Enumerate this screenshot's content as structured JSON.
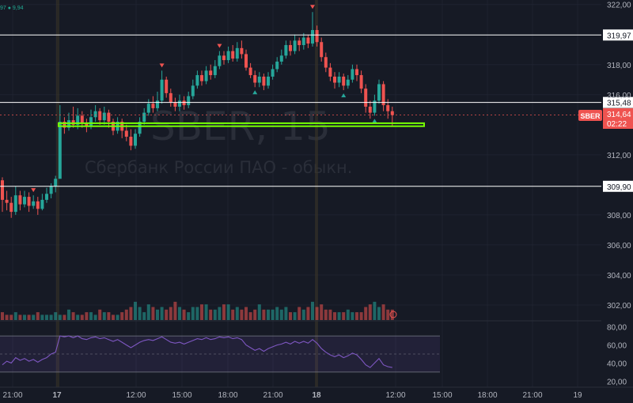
{
  "watermark": {
    "ticker": "SBER, 15",
    "name": "Сбербанк России ПАО - обыкн."
  },
  "legend": {
    "values": "97 ● 9,94"
  },
  "price_tag": {
    "symbol": "SBER",
    "price": "314,64",
    "countdown": "02:22"
  },
  "colors": {
    "up": "#26a69a",
    "down": "#ef5350",
    "level": "#ffffff",
    "highlight": "#76ff03",
    "rsi_line": "#7e57c2"
  },
  "chart_data": [
    {
      "type": "candlestick",
      "y_axis_ticks": [
        "322,00",
        "318,00",
        "316,00",
        "312,00",
        "308,00",
        "306,00",
        "304,00",
        "302,00"
      ],
      "ylim": [
        301,
        322.3
      ],
      "x_axis_ticks": [
        "21:00",
        "17",
        "12:00",
        "15:00",
        "18:00",
        "21:00",
        "18",
        "12:00",
        "15:00",
        "18:00",
        "21:00",
        "19"
      ],
      "horizontal_levels": [
        {
          "value": 319.97,
          "label": "319,97"
        },
        {
          "value": 315.48,
          "label": "315,48"
        },
        {
          "value": 309.9,
          "label": "309,90"
        }
      ],
      "support_zone": [
        313.9,
        314.1
      ],
      "session_separators": [
        "17",
        "18"
      ],
      "candles": [
        [
          310.3,
          309.0,
          310.5,
          308.2
        ],
        [
          309.0,
          308.8,
          309.6,
          308.3
        ],
        [
          308.8,
          308.2,
          309.2,
          307.8
        ],
        [
          308.2,
          309.3,
          309.9,
          308.0
        ],
        [
          309.3,
          308.7,
          309.6,
          308.3
        ],
        [
          308.7,
          309.2,
          309.6,
          308.5
        ],
        [
          309.2,
          308.6,
          309.5,
          308.2
        ],
        [
          308.6,
          308.9,
          309.3,
          308.4
        ],
        [
          308.9,
          308.4,
          309.2,
          308.0
        ],
        [
          308.4,
          309.0,
          309.4,
          308.3
        ],
        [
          309.0,
          309.4,
          309.8,
          308.8
        ],
        [
          309.4,
          309.9,
          310.1,
          309.1
        ],
        [
          309.9,
          310.4,
          310.6,
          309.5
        ],
        [
          310.4,
          314.2,
          315.3,
          312.5
        ],
        [
          314.2,
          313.8,
          314.5,
          313.4
        ],
        [
          313.8,
          314.3,
          314.8,
          313.6
        ],
        [
          314.3,
          314.0,
          315.2,
          313.8
        ],
        [
          314.0,
          314.6,
          315.1,
          313.7
        ],
        [
          314.6,
          314.1,
          314.9,
          313.8
        ],
        [
          314.1,
          313.9,
          314.4,
          313.5
        ],
        [
          313.9,
          314.5,
          315.0,
          313.7
        ],
        [
          314.5,
          314.9,
          315.3,
          314.2
        ],
        [
          314.9,
          314.3,
          315.1,
          314.0
        ],
        [
          314.3,
          314.8,
          315.2,
          314.0
        ],
        [
          314.8,
          314.2,
          315.0,
          313.8
        ],
        [
          314.2,
          313.6,
          314.4,
          313.3
        ],
        [
          313.6,
          314.2,
          314.5,
          313.4
        ],
        [
          314.2,
          313.6,
          314.4,
          313.1
        ],
        [
          313.6,
          313.2,
          314.0,
          312.9
        ],
        [
          313.2,
          312.6,
          313.7,
          312.3
        ],
        [
          312.6,
          313.4,
          313.7,
          312.4
        ],
        [
          313.4,
          314.2,
          314.5,
          313.2
        ],
        [
          314.2,
          314.8,
          315.1,
          314.0
        ],
        [
          314.8,
          315.4,
          315.7,
          314.6
        ],
        [
          315.4,
          315.1,
          315.9,
          314.8
        ],
        [
          315.1,
          315.6,
          316.2,
          314.9
        ],
        [
          315.6,
          317.0,
          317.6,
          315.4
        ],
        [
          317.0,
          316.1,
          317.2,
          315.8
        ],
        [
          316.1,
          315.5,
          316.4,
          315.2
        ],
        [
          315.5,
          315.2,
          315.8,
          314.9
        ],
        [
          315.2,
          315.6,
          316.0,
          314.9
        ],
        [
          315.6,
          315.3,
          315.9,
          315.0
        ],
        [
          315.3,
          315.9,
          316.2,
          315.1
        ],
        [
          315.9,
          316.6,
          317.0,
          315.7
        ],
        [
          316.6,
          317.3,
          317.6,
          316.4
        ],
        [
          317.3,
          316.9,
          317.6,
          316.6
        ],
        [
          316.9,
          317.6,
          317.9,
          316.7
        ],
        [
          317.6,
          317.3,
          318.0,
          317.0
        ],
        [
          317.3,
          317.9,
          318.3,
          317.1
        ],
        [
          317.9,
          318.6,
          318.9,
          317.7
        ],
        [
          318.6,
          318.3,
          318.9,
          318.0
        ],
        [
          318.3,
          318.9,
          319.2,
          318.1
        ],
        [
          318.9,
          318.4,
          319.3,
          318.2
        ],
        [
          318.4,
          319.1,
          319.5,
          318.2
        ],
        [
          319.1,
          318.7,
          319.6,
          318.4
        ],
        [
          318.7,
          317.8,
          319.0,
          317.6
        ],
        [
          317.8,
          317.3,
          318.1,
          317.1
        ],
        [
          317.3,
          316.8,
          317.6,
          316.5
        ],
        [
          316.8,
          317.2,
          317.5,
          316.5
        ],
        [
          317.2,
          316.6,
          317.4,
          316.3
        ],
        [
          316.6,
          317.2,
          317.5,
          316.4
        ],
        [
          317.2,
          317.7,
          318.0,
          317.0
        ],
        [
          317.7,
          318.2,
          318.5,
          317.5
        ],
        [
          318.2,
          318.6,
          319.0,
          318.0
        ],
        [
          318.6,
          319.3,
          319.6,
          318.4
        ],
        [
          319.3,
          318.9,
          319.6,
          318.6
        ],
        [
          318.9,
          319.6,
          320.0,
          318.7
        ],
        [
          319.6,
          319.3,
          319.8,
          318.9
        ],
        [
          319.3,
          319.8,
          320.1,
          319.0
        ],
        [
          319.8,
          319.4,
          320.0,
          319.1
        ],
        [
          319.4,
          320.3,
          321.5,
          319.2
        ],
        [
          320.3,
          319.5,
          320.6,
          319.2
        ],
        [
          319.5,
          318.5,
          319.8,
          318.2
        ],
        [
          318.5,
          317.8,
          318.8,
          317.5
        ],
        [
          317.8,
          317.2,
          318.1,
          316.9
        ],
        [
          317.2,
          316.8,
          317.5,
          316.4
        ],
        [
          316.8,
          317.2,
          317.5,
          316.5
        ],
        [
          317.2,
          316.6,
          317.4,
          316.3
        ],
        [
          316.6,
          317.0,
          317.3,
          316.4
        ],
        [
          317.0,
          317.7,
          318.0,
          316.8
        ],
        [
          317.7,
          317.3,
          318.0,
          316.9
        ],
        [
          317.3,
          316.4,
          317.6,
          316.1
        ],
        [
          316.4,
          315.2,
          316.7,
          314.8
        ],
        [
          315.2,
          314.8,
          315.6,
          314.4
        ],
        [
          314.8,
          315.6,
          316.0,
          314.6
        ],
        [
          315.6,
          316.7,
          317.0,
          315.4
        ],
        [
          316.7,
          315.3,
          316.9,
          314.9
        ],
        [
          315.3,
          314.9,
          315.7,
          314.4
        ],
        [
          314.9,
          314.64,
          315.2,
          313.9
        ]
      ],
      "markers_down": [
        7,
        36,
        49,
        70
      ],
      "markers_up": [
        57,
        77,
        84
      ]
    },
    {
      "type": "bar",
      "title": "Volume",
      "values": [
        3,
        2,
        2,
        3,
        2,
        2,
        2,
        2,
        3,
        2,
        2,
        2,
        3,
        2,
        2,
        4,
        3,
        2,
        2,
        3,
        3,
        2,
        4,
        3,
        3,
        2,
        2,
        3,
        4,
        5,
        7,
        5,
        3,
        6,
        5,
        4,
        5,
        4,
        5,
        7,
        5,
        4,
        3,
        5,
        5,
        6,
        6,
        4,
        4,
        5,
        6,
        6,
        4,
        5,
        4,
        5,
        3,
        4,
        6,
        4,
        4,
        4,
        5,
        4,
        5,
        3,
        3,
        5,
        4,
        5,
        7,
        5,
        6,
        4,
        4,
        3,
        3,
        3,
        4,
        3,
        3,
        3,
        5,
        6,
        7,
        5,
        6,
        4,
        4
      ]
    },
    {
      "type": "line",
      "title": "RSI",
      "y_axis_ticks": [
        "80,00",
        "60,00",
        "40,00",
        "20,00"
      ],
      "ylim": [
        15,
        85
      ],
      "upper_band": 70,
      "lower_band": 30,
      "mid_line": 50,
      "values": [
        38,
        42,
        40,
        46,
        43,
        45,
        42,
        44,
        41,
        44,
        46,
        50,
        52,
        70,
        69,
        70,
        68,
        70,
        67,
        66,
        68,
        69,
        67,
        68,
        66,
        64,
        66,
        63,
        60,
        57,
        60,
        63,
        65,
        66,
        65,
        67,
        69,
        66,
        63,
        62,
        63,
        61,
        63,
        65,
        67,
        66,
        68,
        66,
        67,
        69,
        68,
        69,
        67,
        68,
        66,
        60,
        57,
        54,
        56,
        53,
        56,
        58,
        60,
        61,
        63,
        61,
        64,
        62,
        64,
        62,
        66,
        62,
        56,
        52,
        49,
        47,
        49,
        46,
        48,
        51,
        49,
        44,
        38,
        35,
        40,
        45,
        38,
        36,
        35
      ]
    }
  ]
}
